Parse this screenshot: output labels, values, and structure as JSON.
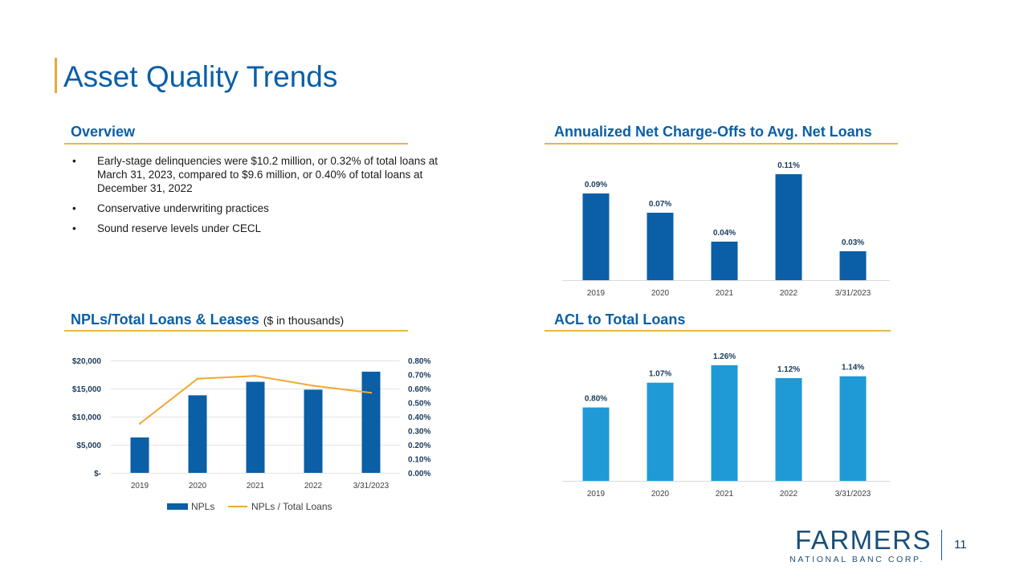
{
  "page": {
    "title": "Asset Quality Trends",
    "page_number": "11"
  },
  "overview": {
    "heading": "Overview",
    "bullet_symbol": "•",
    "bullets": [
      "Early-stage delinquencies were $10.2 million, or 0.32% of total loans at March 31, 2023, compared to $9.6 million, or 0.40% of total loans at December 31, 2022",
      "Conservative underwriting practices",
      "Sound reserve levels under CECL"
    ]
  },
  "nco_heading": "Annualized Net Charge-Offs to Avg. Net Loans",
  "npl_heading": {
    "main": "NPLs/Total Loans & Leases",
    "sub": "($ in thousands)"
  },
  "acl_heading": "ACL to Total Loans",
  "logo": {
    "name": "FARMERS",
    "sub": "NATIONAL BANC CORP."
  },
  "colors": {
    "accent_blue": "#0b5fa5",
    "bar_dark": "#0a5fa6",
    "bar_light": "#1f9ad6",
    "line_orange": "#f0a830",
    "rule_gold": "#e8b64a"
  },
  "chart_data": [
    {
      "type": "bar",
      "title": "Annualized Net Charge-Offs to Avg. Net Loans",
      "categories": [
        "2019",
        "2020",
        "2021",
        "2022",
        "3/31/2023"
      ],
      "values": [
        0.09,
        0.07,
        0.04,
        0.11,
        0.03
      ],
      "labels": [
        "0.09%",
        "0.07%",
        "0.04%",
        "0.11%",
        "0.03%"
      ],
      "ylim": [
        0,
        0.11
      ]
    },
    {
      "type": "bar",
      "title": "NPLs/Total Loans & Leases ($ in thousands)",
      "categories": [
        "2019",
        "2020",
        "2021",
        "2022",
        "3/31/2023"
      ],
      "series": [
        {
          "name": "NPLs",
          "kind": "bar",
          "axis": "left",
          "values": [
            6300,
            13800,
            16200,
            14800,
            18000
          ]
        },
        {
          "name": "NPLs / Total Loans",
          "kind": "line",
          "axis": "right",
          "values": [
            0.35,
            0.67,
            0.69,
            0.62,
            0.57
          ]
        }
      ],
      "y_left": {
        "ylim": [
          0,
          20000
        ],
        "ticks": [
          "$-",
          "$5,000",
          "$10,000",
          "$15,000",
          "$20,000"
        ]
      },
      "y_right": {
        "ylim": [
          0,
          0.8
        ],
        "ticks": [
          "0.00%",
          "0.10%",
          "0.20%",
          "0.30%",
          "0.40%",
          "0.50%",
          "0.60%",
          "0.70%",
          "0.80%"
        ]
      },
      "legend": [
        "NPLs",
        "NPLs / Total Loans"
      ],
      "grid": true
    },
    {
      "type": "bar",
      "title": "ACL to Total Loans",
      "categories": [
        "2019",
        "2020",
        "2021",
        "2022",
        "3/31/2023"
      ],
      "values": [
        0.8,
        1.07,
        1.26,
        1.12,
        1.14
      ],
      "labels": [
        "0.80%",
        "1.07%",
        "1.26%",
        "1.12%",
        "1.14%"
      ],
      "ylim": [
        0,
        1.26
      ]
    }
  ]
}
